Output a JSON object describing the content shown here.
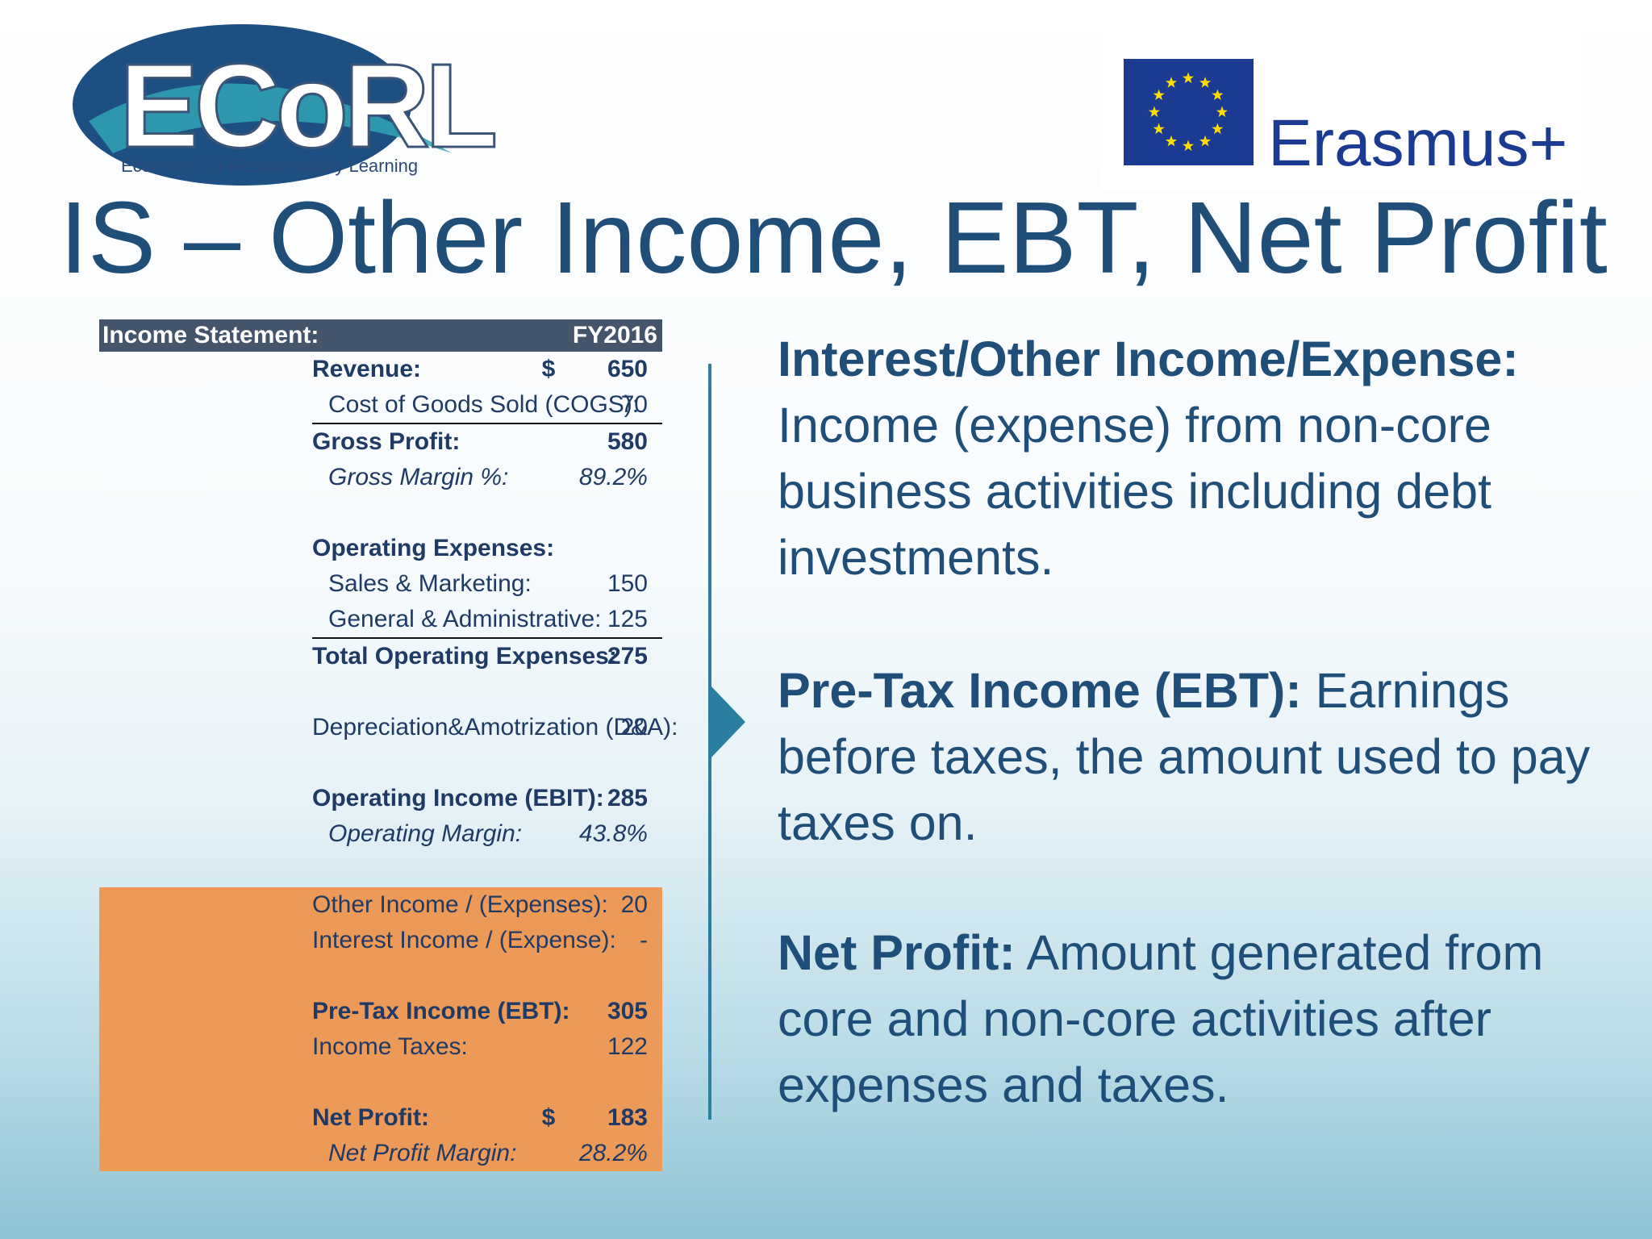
{
  "logos": {
    "ecorl": {
      "name": "ECoRL",
      "tagline": "Economy Co-Responsability Learning"
    },
    "erasmus": "Erasmus+"
  },
  "title": "IS – Other Income, EBT, Net Profit",
  "table": {
    "header": [
      "Income Statement:",
      "FY2016"
    ],
    "rows": [
      {
        "label": "Revenue:",
        "currency": "$",
        "value": "650"
      },
      {
        "label": "Cost of Goods Sold (COGS):",
        "value": "70"
      },
      {
        "label": "Gross Profit:",
        "value": "580"
      },
      {
        "label": "Gross Margin %:",
        "value": "89.2%"
      },
      {
        "label": "Operating Expenses:"
      },
      {
        "label": "Sales & Marketing:",
        "value": "150"
      },
      {
        "label": "General & Administrative:",
        "value": "125"
      },
      {
        "label": "Total Operating Expenses:",
        "value": "275"
      },
      {
        "label": "Depreciation&Amotrization (D&A):",
        "value": "20"
      },
      {
        "label": "Operating Income (EBIT):",
        "value": "285"
      },
      {
        "label": "Operating Margin:",
        "value": "43.8%"
      },
      {
        "label": "Other Income / (Expenses):",
        "value": "20"
      },
      {
        "label": "Interest Income / (Expense):",
        "value": "-"
      },
      {
        "label": "Pre-Tax Income (EBT):",
        "value": "305"
      },
      {
        "label": "Income Taxes:",
        "value": "122"
      },
      {
        "label": "Net Profit:",
        "currency": "$",
        "value": "183"
      },
      {
        "label": "Net Profit Margin:",
        "value": "28.2%"
      }
    ]
  },
  "notes": [
    {
      "heading": "Interest/Other Income/Expense:",
      "text": "Income (expense) from non-core business activities including debt investments."
    },
    {
      "heading": "Pre-Tax Income (EBT):",
      "text": "Earnings before taxes, the amount used to pay taxes on."
    },
    {
      "heading": "Net Profit:",
      "text": "Amount generated from core and non-core activities after expenses and taxes."
    }
  ]
}
